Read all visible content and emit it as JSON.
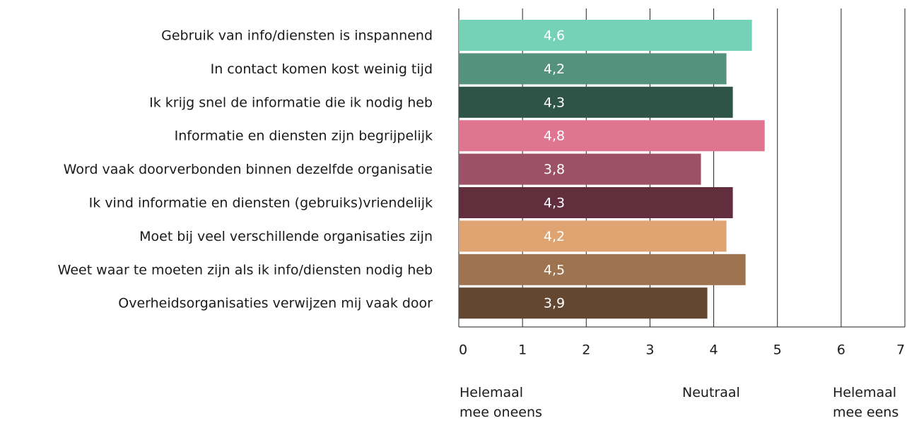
{
  "chart_data": {
    "type": "barh",
    "categories": [
      "Gebruik van info/diensten is inspannend",
      "In contact komen kost weinig tijd",
      "Ik krijg snel de informatie die ik nodig heb",
      "Informatie en diensten zijn begrijpelijk",
      "Word vaak doorverbonden binnen dezelfde organisatie",
      "Ik vind informatie en diensten (gebruiks)vriendelijk",
      "Moet bij veel verschillende organisaties zijn",
      "Weet waar te moeten zijn als ik info/diensten nodig heb",
      "Overheidsorganisaties verwijzen mij vaak door"
    ],
    "values": [
      4.6,
      4.2,
      4.3,
      4.8,
      3.8,
      4.3,
      4.2,
      4.5,
      3.9
    ],
    "value_labels": [
      "4,6",
      "4,2",
      "4,3",
      "4,8",
      "3,8",
      "4,3",
      "4,2",
      "4,5",
      "3,9"
    ],
    "colors": [
      "#76d2b6",
      "#54927e",
      "#2d5447",
      "#e07590",
      "#9c5166",
      "#622e3e",
      "#dfa472",
      "#9e7450",
      "#634730"
    ],
    "xlim": [
      0,
      7
    ],
    "xticks": [
      0,
      1,
      2,
      3,
      4,
      5,
      6,
      7
    ],
    "grid": true,
    "annotations": [
      "Helemaal\nmee oneens",
      "Neutraal",
      "Helemaal\nmee eens"
    ]
  }
}
